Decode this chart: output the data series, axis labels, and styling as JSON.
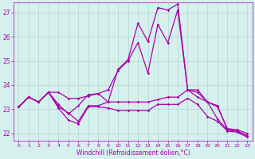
{
  "xlabel": "Windchill (Refroidissement éolien,°C)",
  "bg_color": "#d6f0ee",
  "grid_color": "#b0d8d0",
  "line_color": "#aa00aa",
  "xlim": [
    -0.5,
    23.5
  ],
  "ylim": [
    21.7,
    27.4
  ],
  "yticks": [
    22,
    23,
    24,
    25,
    26,
    27
  ],
  "xticks": [
    0,
    1,
    2,
    3,
    4,
    5,
    6,
    7,
    8,
    9,
    10,
    11,
    12,
    13,
    14,
    15,
    16,
    17,
    18,
    19,
    20,
    21,
    22,
    23
  ],
  "series": [
    [
      23.1,
      23.5,
      23.3,
      23.7,
      23.1,
      22.85,
      22.5,
      23.15,
      23.15,
      23.3,
      23.3,
      23.3,
      23.3,
      23.3,
      23.4,
      23.5,
      23.5,
      23.8,
      23.7,
      23.3,
      23.1,
      22.2,
      22.15,
      22.0
    ],
    [
      23.1,
      23.5,
      23.3,
      23.7,
      23.2,
      22.8,
      23.15,
      23.6,
      23.65,
      23.3,
      24.65,
      25.05,
      26.55,
      25.8,
      27.2,
      27.1,
      27.35,
      23.8,
      23.8,
      23.3,
      22.6,
      22.15,
      22.1,
      21.9
    ],
    [
      23.1,
      23.5,
      23.3,
      23.7,
      23.7,
      23.45,
      23.45,
      23.55,
      23.65,
      23.8,
      24.6,
      25.0,
      25.75,
      24.5,
      26.5,
      25.75,
      27.1,
      23.8,
      23.5,
      23.3,
      23.15,
      22.15,
      22.1,
      21.9
    ],
    [
      23.1,
      23.5,
      23.3,
      23.7,
      23.05,
      22.55,
      22.4,
      23.1,
      23.1,
      23.05,
      22.95,
      22.95,
      22.95,
      22.95,
      23.2,
      23.2,
      23.2,
      23.45,
      23.2,
      22.7,
      22.5,
      22.1,
      22.05,
      21.85
    ]
  ]
}
